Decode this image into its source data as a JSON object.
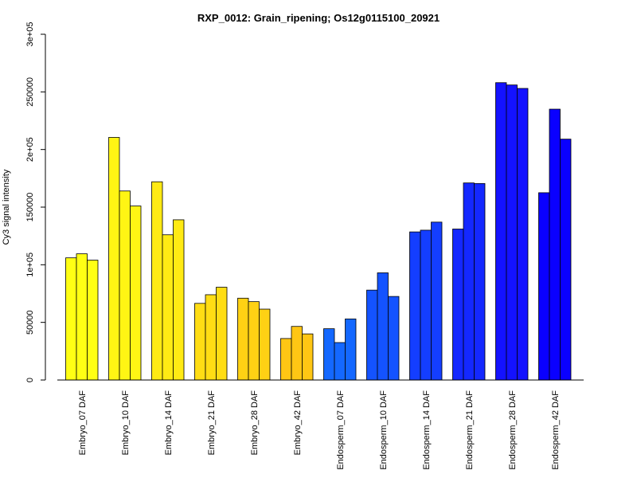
{
  "chart_data": {
    "type": "bar",
    "title": "RXP_0012: Grain_ripening; Os12g0115100_20921",
    "ylabel": "Cy3 signal intensity",
    "xlabel": "",
    "ylim": [
      0,
      300000
    ],
    "yticks": [
      {
        "value": 0,
        "label": "0"
      },
      {
        "value": 50000,
        "label": "50000"
      },
      {
        "value": 100000,
        "label": "1e+05"
      },
      {
        "value": 150000,
        "label": "150000"
      },
      {
        "value": 200000,
        "label": "2e+05"
      },
      {
        "value": 250000,
        "label": "250000"
      },
      {
        "value": 300000,
        "label": "3e+05"
      }
    ],
    "grid": false,
    "categories": [
      "Embryo_07 DAF",
      "Embryo_10 DAF",
      "Embryo_14 DAF",
      "Embryo_21 DAF",
      "Embryo_28 DAF",
      "Embryo_42 DAF",
      "Endosperm_07 DAF",
      "Endosperm_10 DAF",
      "Endosperm_14 DAF",
      "Endosperm_21 DAF",
      "Endosperm_28 DAF",
      "Endosperm_42 DAF"
    ],
    "colors": [
      "#ffff14",
      "#fff514",
      "#ffea14",
      "#ffdd14",
      "#ffd114",
      "#ffc614",
      "#1468ff",
      "#1453ff",
      "#143eff",
      "#1428ff",
      "#1412ff",
      "#0a00ff"
    ],
    "replicates": [
      [
        106000,
        109500,
        104000
      ],
      [
        210500,
        164000,
        151000
      ],
      [
        172000,
        126000,
        139000
      ],
      [
        66500,
        74000,
        80500
      ],
      [
        71000,
        68000,
        61500
      ],
      [
        36000,
        46500,
        40000
      ],
      [
        44500,
        32500,
        53000
      ],
      [
        78000,
        93000,
        72500
      ],
      [
        128500,
        130000,
        137000
      ],
      [
        131000,
        171000,
        170500
      ],
      [
        258000,
        256000,
        253000
      ],
      [
        162500,
        235000,
        209000
      ]
    ]
  }
}
